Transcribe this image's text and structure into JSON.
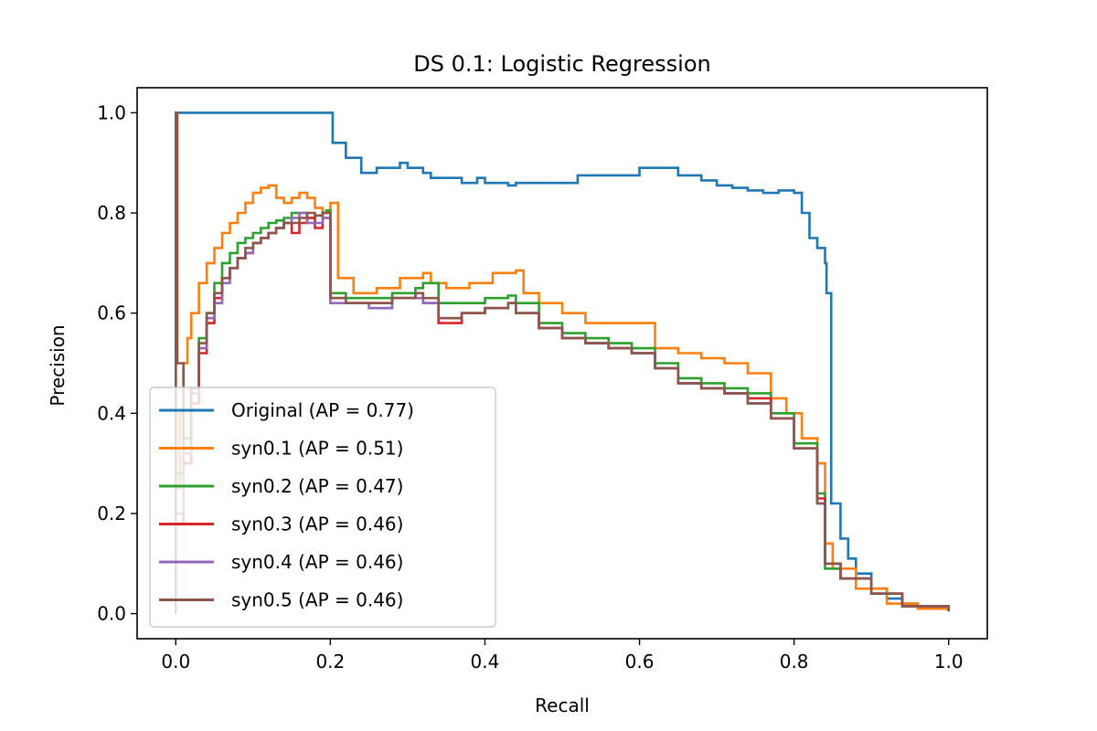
{
  "chart_data": {
    "type": "line",
    "title": "DS 0.1: Logistic Regression",
    "xlabel": "Recall",
    "ylabel": "Precision",
    "xlim": [
      -0.05,
      1.05
    ],
    "ylim": [
      -0.05,
      1.05
    ],
    "xticks": [
      0.0,
      0.2,
      0.4,
      0.6,
      0.8,
      1.0
    ],
    "xtick_labels": [
      "0.0",
      "0.2",
      "0.4",
      "0.6",
      "0.8",
      "1.0"
    ],
    "yticks": [
      0.0,
      0.2,
      0.4,
      0.6,
      0.8,
      1.0
    ],
    "ytick_labels": [
      "0.0",
      "0.2",
      "0.4",
      "0.6",
      "0.8",
      "1.0"
    ],
    "legend_position": "lower-left",
    "series": [
      {
        "name": "Original",
        "label": "Original (AP = 0.77)",
        "color": "#1f77b4",
        "x": [
          0.0,
          0.0,
          0.203,
          0.203,
          0.22,
          0.22,
          0.24,
          0.24,
          0.26,
          0.29,
          0.3,
          0.32,
          0.33,
          0.36,
          0.37,
          0.39,
          0.4,
          0.42,
          0.43,
          0.44,
          0.45,
          0.52,
          0.6,
          0.62,
          0.65,
          0.68,
          0.7,
          0.72,
          0.74,
          0.76,
          0.78,
          0.8,
          0.81,
          0.82,
          0.83,
          0.84,
          0.842,
          0.848,
          0.848,
          0.86,
          0.87,
          0.88,
          0.9,
          0.92,
          0.94,
          0.96,
          1.0
        ],
        "y": [
          0.0,
          1.0,
          1.0,
          0.94,
          0.93,
          0.91,
          0.89,
          0.88,
          0.89,
          0.9,
          0.89,
          0.88,
          0.87,
          0.87,
          0.86,
          0.87,
          0.86,
          0.86,
          0.855,
          0.86,
          0.86,
          0.875,
          0.89,
          0.89,
          0.875,
          0.865,
          0.855,
          0.85,
          0.845,
          0.84,
          0.845,
          0.84,
          0.8,
          0.75,
          0.73,
          0.7,
          0.64,
          0.62,
          0.22,
          0.15,
          0.11,
          0.08,
          0.05,
          0.03,
          0.02,
          0.01,
          0.005
        ]
      },
      {
        "name": "syn0.1",
        "label": "syn0.1 (AP = 0.51)",
        "color": "#ff7f0e",
        "x": [
          0.0,
          0.005,
          0.01,
          0.015,
          0.02,
          0.03,
          0.04,
          0.05,
          0.06,
          0.07,
          0.08,
          0.09,
          0.1,
          0.11,
          0.12,
          0.13,
          0.14,
          0.15,
          0.16,
          0.17,
          0.18,
          0.19,
          0.2,
          0.21,
          0.23,
          0.26,
          0.29,
          0.32,
          0.33,
          0.35,
          0.38,
          0.41,
          0.44,
          0.45,
          0.47,
          0.5,
          0.53,
          0.56,
          0.59,
          0.62,
          0.65,
          0.68,
          0.71,
          0.74,
          0.77,
          0.79,
          0.81,
          0.83,
          0.84,
          0.85,
          0.88,
          0.92,
          0.96,
          1.0
        ],
        "y": [
          0.25,
          0.4,
          0.5,
          0.55,
          0.6,
          0.66,
          0.7,
          0.73,
          0.76,
          0.78,
          0.8,
          0.82,
          0.84,
          0.85,
          0.855,
          0.83,
          0.82,
          0.83,
          0.84,
          0.83,
          0.81,
          0.8,
          0.82,
          0.67,
          0.64,
          0.65,
          0.67,
          0.68,
          0.66,
          0.65,
          0.66,
          0.68,
          0.685,
          0.64,
          0.62,
          0.6,
          0.58,
          0.58,
          0.58,
          0.53,
          0.52,
          0.51,
          0.5,
          0.48,
          0.43,
          0.4,
          0.35,
          0.3,
          0.14,
          0.09,
          0.05,
          0.02,
          0.01,
          0.005
        ]
      },
      {
        "name": "syn0.2",
        "label": "syn0.2 (AP = 0.47)",
        "color": "#2ca02c",
        "x": [
          0.0,
          0.01,
          0.02,
          0.03,
          0.04,
          0.05,
          0.06,
          0.07,
          0.08,
          0.09,
          0.1,
          0.11,
          0.12,
          0.13,
          0.14,
          0.15,
          0.16,
          0.17,
          0.18,
          0.19,
          0.195,
          0.2,
          0.22,
          0.25,
          0.28,
          0.31,
          0.32,
          0.34,
          0.37,
          0.4,
          0.43,
          0.44,
          0.47,
          0.5,
          0.53,
          0.56,
          0.59,
          0.62,
          0.65,
          0.68,
          0.71,
          0.74,
          0.77,
          0.8,
          0.83,
          0.84,
          0.86,
          0.9,
          0.94,
          1.0
        ],
        "y": [
          0.28,
          0.35,
          0.45,
          0.55,
          0.6,
          0.66,
          0.7,
          0.72,
          0.74,
          0.75,
          0.76,
          0.77,
          0.78,
          0.785,
          0.79,
          0.8,
          0.8,
          0.79,
          0.795,
          0.8,
          0.805,
          0.64,
          0.63,
          0.63,
          0.64,
          0.65,
          0.66,
          0.62,
          0.62,
          0.63,
          0.635,
          0.62,
          0.58,
          0.56,
          0.55,
          0.54,
          0.53,
          0.5,
          0.47,
          0.46,
          0.45,
          0.44,
          0.4,
          0.34,
          0.24,
          0.09,
          0.07,
          0.04,
          0.015,
          0.005
        ]
      },
      {
        "name": "syn0.3",
        "label": "syn0.3 (AP = 0.46)",
        "color": "#d62728",
        "x": [
          0.0,
          0.01,
          0.02,
          0.03,
          0.04,
          0.05,
          0.06,
          0.07,
          0.08,
          0.09,
          0.1,
          0.11,
          0.12,
          0.13,
          0.14,
          0.15,
          0.16,
          0.17,
          0.18,
          0.19,
          0.2,
          0.22,
          0.25,
          0.28,
          0.31,
          0.32,
          0.34,
          0.37,
          0.4,
          0.43,
          0.44,
          0.47,
          0.5,
          0.53,
          0.56,
          0.59,
          0.62,
          0.65,
          0.68,
          0.71,
          0.74,
          0.77,
          0.8,
          0.83,
          0.84,
          0.86,
          0.9,
          0.94,
          1.0
        ],
        "y": [
          0.18,
          0.3,
          0.42,
          0.52,
          0.58,
          0.63,
          0.67,
          0.69,
          0.71,
          0.72,
          0.74,
          0.75,
          0.76,
          0.77,
          0.78,
          0.76,
          0.78,
          0.79,
          0.77,
          0.79,
          0.63,
          0.62,
          0.62,
          0.63,
          0.64,
          0.62,
          0.58,
          0.6,
          0.61,
          0.62,
          0.6,
          0.57,
          0.55,
          0.54,
          0.53,
          0.52,
          0.49,
          0.46,
          0.45,
          0.44,
          0.43,
          0.39,
          0.33,
          0.23,
          0.1,
          0.07,
          0.04,
          0.015,
          0.005
        ]
      },
      {
        "name": "syn0.4",
        "label": "syn0.4 (AP = 0.46)",
        "color": "#9467bd",
        "x": [
          0.0,
          0.01,
          0.02,
          0.03,
          0.04,
          0.05,
          0.06,
          0.07,
          0.08,
          0.09,
          0.1,
          0.11,
          0.12,
          0.13,
          0.14,
          0.15,
          0.16,
          0.17,
          0.18,
          0.19,
          0.2,
          0.22,
          0.25,
          0.28,
          0.31,
          0.32,
          0.34,
          0.37,
          0.4,
          0.43,
          0.44,
          0.47,
          0.5,
          0.53,
          0.56,
          0.59,
          0.62,
          0.65,
          0.68,
          0.71,
          0.74,
          0.77,
          0.8,
          0.83,
          0.84,
          0.86,
          0.9,
          0.94,
          1.0
        ],
        "y": [
          0.2,
          0.32,
          0.44,
          0.53,
          0.59,
          0.62,
          0.66,
          0.69,
          0.71,
          0.72,
          0.74,
          0.75,
          0.76,
          0.77,
          0.78,
          0.79,
          0.8,
          0.78,
          0.78,
          0.79,
          0.62,
          0.62,
          0.61,
          0.63,
          0.63,
          0.62,
          0.59,
          0.6,
          0.61,
          0.62,
          0.6,
          0.57,
          0.55,
          0.54,
          0.53,
          0.52,
          0.49,
          0.46,
          0.45,
          0.44,
          0.42,
          0.39,
          0.33,
          0.22,
          0.1,
          0.07,
          0.04,
          0.015,
          0.005
        ]
      },
      {
        "name": "syn0.5",
        "label": "syn0.5 (AP = 0.46)",
        "color": "#8c564b",
        "x": [
          0.0,
          0.0,
          0.002,
          0.01,
          0.02,
          0.03,
          0.04,
          0.05,
          0.06,
          0.07,
          0.08,
          0.09,
          0.1,
          0.11,
          0.12,
          0.13,
          0.14,
          0.15,
          0.16,
          0.17,
          0.18,
          0.19,
          0.2,
          0.22,
          0.25,
          0.28,
          0.31,
          0.32,
          0.34,
          0.37,
          0.4,
          0.43,
          0.44,
          0.47,
          0.5,
          0.53,
          0.56,
          0.59,
          0.62,
          0.65,
          0.68,
          0.71,
          0.74,
          0.77,
          0.8,
          0.83,
          0.84,
          0.86,
          0.9,
          0.94,
          1.0
        ],
        "y": [
          0.0,
          1.0,
          0.5,
          0.33,
          0.45,
          0.54,
          0.6,
          0.64,
          0.67,
          0.69,
          0.71,
          0.73,
          0.74,
          0.75,
          0.76,
          0.77,
          0.78,
          0.78,
          0.79,
          0.8,
          0.795,
          0.8,
          0.63,
          0.62,
          0.62,
          0.63,
          0.64,
          0.63,
          0.59,
          0.6,
          0.61,
          0.62,
          0.6,
          0.57,
          0.55,
          0.54,
          0.53,
          0.52,
          0.49,
          0.46,
          0.45,
          0.44,
          0.42,
          0.39,
          0.33,
          0.22,
          0.1,
          0.07,
          0.04,
          0.015,
          0.005
        ]
      }
    ]
  }
}
